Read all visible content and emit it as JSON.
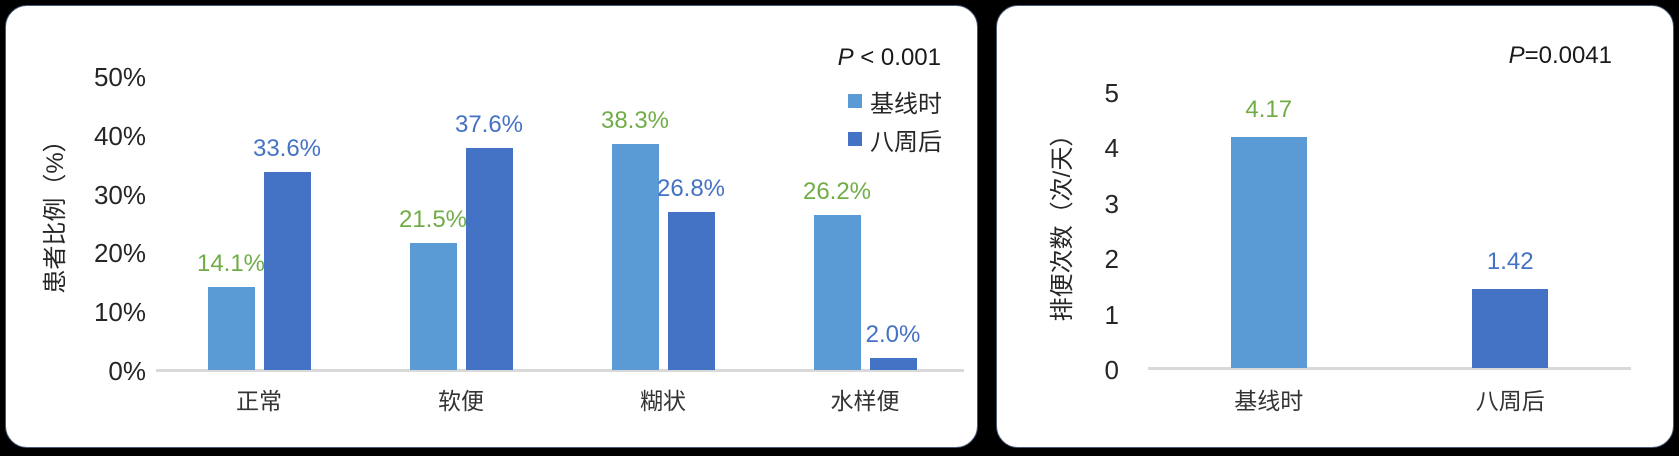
{
  "figure": {
    "background": "#000000",
    "panel_background": "#FFFFFF",
    "accent_colors": {
      "baseline_bar": "#5B9BD5",
      "after8w_bar": "#4472C4",
      "baseline_value_label": "#70AD47",
      "after8w_value_label": "#4472C4",
      "axis_line": "#D9D9D9",
      "text": "#262626"
    }
  },
  "chart_data": [
    {
      "type": "bar",
      "title": "",
      "p_label": "P",
      "p_suffix": " < 0.001",
      "ylabel": "患者比例（%）",
      "yticks": [
        "50%",
        "40%",
        "30%",
        "20%",
        "10%",
        "0%"
      ],
      "ylim": [
        0,
        50
      ],
      "grid": false,
      "categories": [
        "正常",
        "软便",
        "糊状",
        "水样便"
      ],
      "series": [
        {
          "name": "基线时",
          "color": "#5B9BD5",
          "label_color": "#70AD47",
          "values": [
            14.1,
            21.5,
            38.3,
            26.2
          ],
          "labels": [
            "14.1%",
            "21.5%",
            "38.3%",
            "26.2%"
          ]
        },
        {
          "name": "八周后",
          "color": "#4472C4",
          "label_color": "#4472C4",
          "values": [
            33.6,
            37.6,
            26.8,
            2.0
          ],
          "labels": [
            "33.6%",
            "37.6%",
            "26.8%",
            "2.0%"
          ]
        }
      ],
      "legend": {
        "position": "top-right",
        "items": [
          {
            "label": "基线时",
            "color": "#5B9BD5"
          },
          {
            "label": "八周后",
            "color": "#4472C4"
          }
        ]
      }
    },
    {
      "type": "bar",
      "title": "",
      "p_label": "P",
      "p_suffix": "=0.0041",
      "ylabel": "排便次数（次/天）",
      "yticks": [
        "5",
        "4",
        "3",
        "2",
        "1",
        "0"
      ],
      "ylim": [
        0,
        5
      ],
      "grid": false,
      "categories": [
        "基线时",
        "八周后"
      ],
      "values": [
        4.17,
        1.42
      ],
      "labels": [
        "4.17",
        "1.42"
      ],
      "bar_colors": [
        "#5B9BD5",
        "#4472C4"
      ],
      "label_colors": [
        "#70AD47",
        "#4472C4"
      ]
    }
  ]
}
